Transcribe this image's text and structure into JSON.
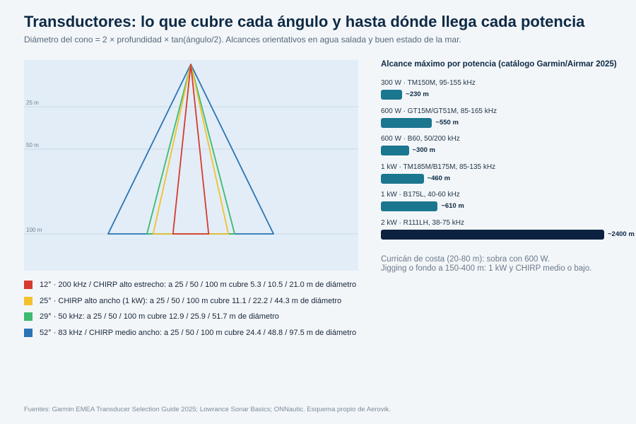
{
  "title": "Transductores: lo que cubre cada ángulo y hasta dónde llega cada potencia",
  "subtitle": "Diámetro del cono = 2 × profundidad × tan(ángulo/2). Alcances orientativos en agua salada y buen estado de la mar.",
  "footer": "Fuentes: Garmin EMEA Transducer Selection Guide 2025; Lowrance Sonar Basics; ONNautic. Esquema propio de Aerovik.",
  "notes": [
    "Curricán de costa (20-80 m): sobra con 600 W.",
    "Jigging o fondo a 150-400 m: 1 kW y CHIRP medio o bajo."
  ],
  "chart_data": [
    {
      "type": "cone-diagram",
      "depth_ticks": [
        "25 m",
        "50 m",
        "100 m"
      ],
      "depth_tick_values": [
        25,
        50,
        100
      ],
      "depth_range": [
        0,
        100
      ],
      "grid": true,
      "legend_position": "bottom",
      "series": [
        {
          "angle_deg": 12,
          "color": "#d63a2f",
          "label": "12° · 200 kHz / CHIRP alto estrecho: a 25 / 50 / 100 m cubre 5.3 / 10.5 / 21.0 m de diámetro",
          "diameters_m": [
            5.3,
            10.5,
            21.0
          ]
        },
        {
          "angle_deg": 25,
          "color": "#f2c12e",
          "label": "25° · CHIRP alto ancho (1 kW): a 25 / 50 / 100 m cubre 11.1 / 22.2 / 44.3 m de diámetro",
          "diameters_m": [
            11.1,
            22.2,
            44.3
          ]
        },
        {
          "angle_deg": 29,
          "color": "#3dbb6e",
          "label": "29° · 50 kHz: a 25 / 50 / 100 m cubre 12.9 / 25.9 / 51.7 m de diámetro",
          "diameters_m": [
            12.9,
            25.9,
            51.7
          ]
        },
        {
          "angle_deg": 52,
          "color": "#2a74b5",
          "label": "52° · 83 kHz / CHIRP medio ancho: a 25 / 50 / 100 m cubre 24.4 / 48.8 / 97.5 m de diámetro",
          "diameters_m": [
            24.4,
            48.8,
            97.5
          ]
        }
      ]
    },
    {
      "type": "bar",
      "orientation": "horizontal",
      "title": "Alcance máximo por potencia (catálogo Garmin/Airmar 2025)",
      "unit": "m",
      "xlim": [
        0,
        2400
      ],
      "categories": [
        "300 W · TM150M, 95-155 kHz",
        "600 W · GT15M/GT51M, 85-165 kHz",
        "600 W · B60, 50/200 kHz",
        "1 kW · TM185M/B175M, 85-135 kHz",
        "1 kW · B175L, 40-60 kHz",
        "2 kW · R111LH, 38-75 kHz"
      ],
      "values": [
        230,
        550,
        300,
        460,
        610,
        2400
      ],
      "value_labels": [
        "~230 m",
        "~550 m",
        "~300 m",
        "~460 m",
        "~610 m",
        "~2400 m"
      ],
      "colors": [
        "#1b7690",
        "#1b7690",
        "#1b7690",
        "#1b7690",
        "#1b7690",
        "#0d2240"
      ]
    }
  ]
}
